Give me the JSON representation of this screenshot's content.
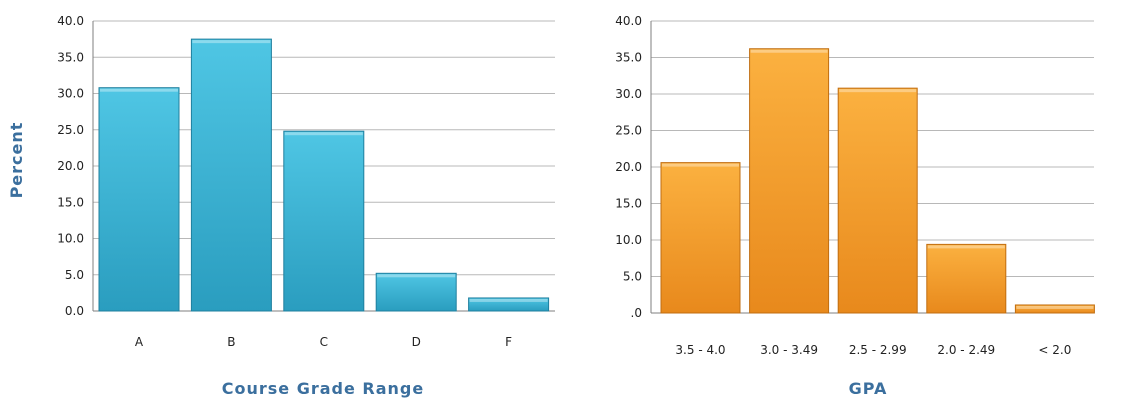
{
  "chart_data": [
    {
      "type": "bar",
      "categories": [
        "A",
        "B",
        "C",
        "D",
        "F"
      ],
      "values": [
        30.8,
        37.5,
        24.8,
        5.2,
        1.8
      ],
      "xlabel": "Course Grade Range",
      "ylabel": "Percent",
      "ylim": [
        0,
        40
      ],
      "yticks": [
        "0.0",
        "5.0",
        "10.0",
        "15.0",
        "20.0",
        "25.0",
        "30.0",
        "35.0",
        "40.0"
      ],
      "grid": true,
      "color": "#3cb6d6"
    },
    {
      "type": "bar",
      "categories": [
        "3.5 - 4.0",
        "3.0 - 3.49",
        "2.5 - 2.99",
        "2.0 - 2.49",
        "< 2.0"
      ],
      "values": [
        20.6,
        36.2,
        30.8,
        9.4,
        1.1
      ],
      "xlabel": "GPA",
      "ylabel": "",
      "ylim": [
        0,
        40
      ],
      "yticks": [
        ".0",
        "5.0",
        "10.0",
        "15.0",
        "20.0",
        "25.0",
        "30.0",
        "35.0",
        "40.0"
      ],
      "grid": true,
      "color": "#f4a22e"
    }
  ]
}
